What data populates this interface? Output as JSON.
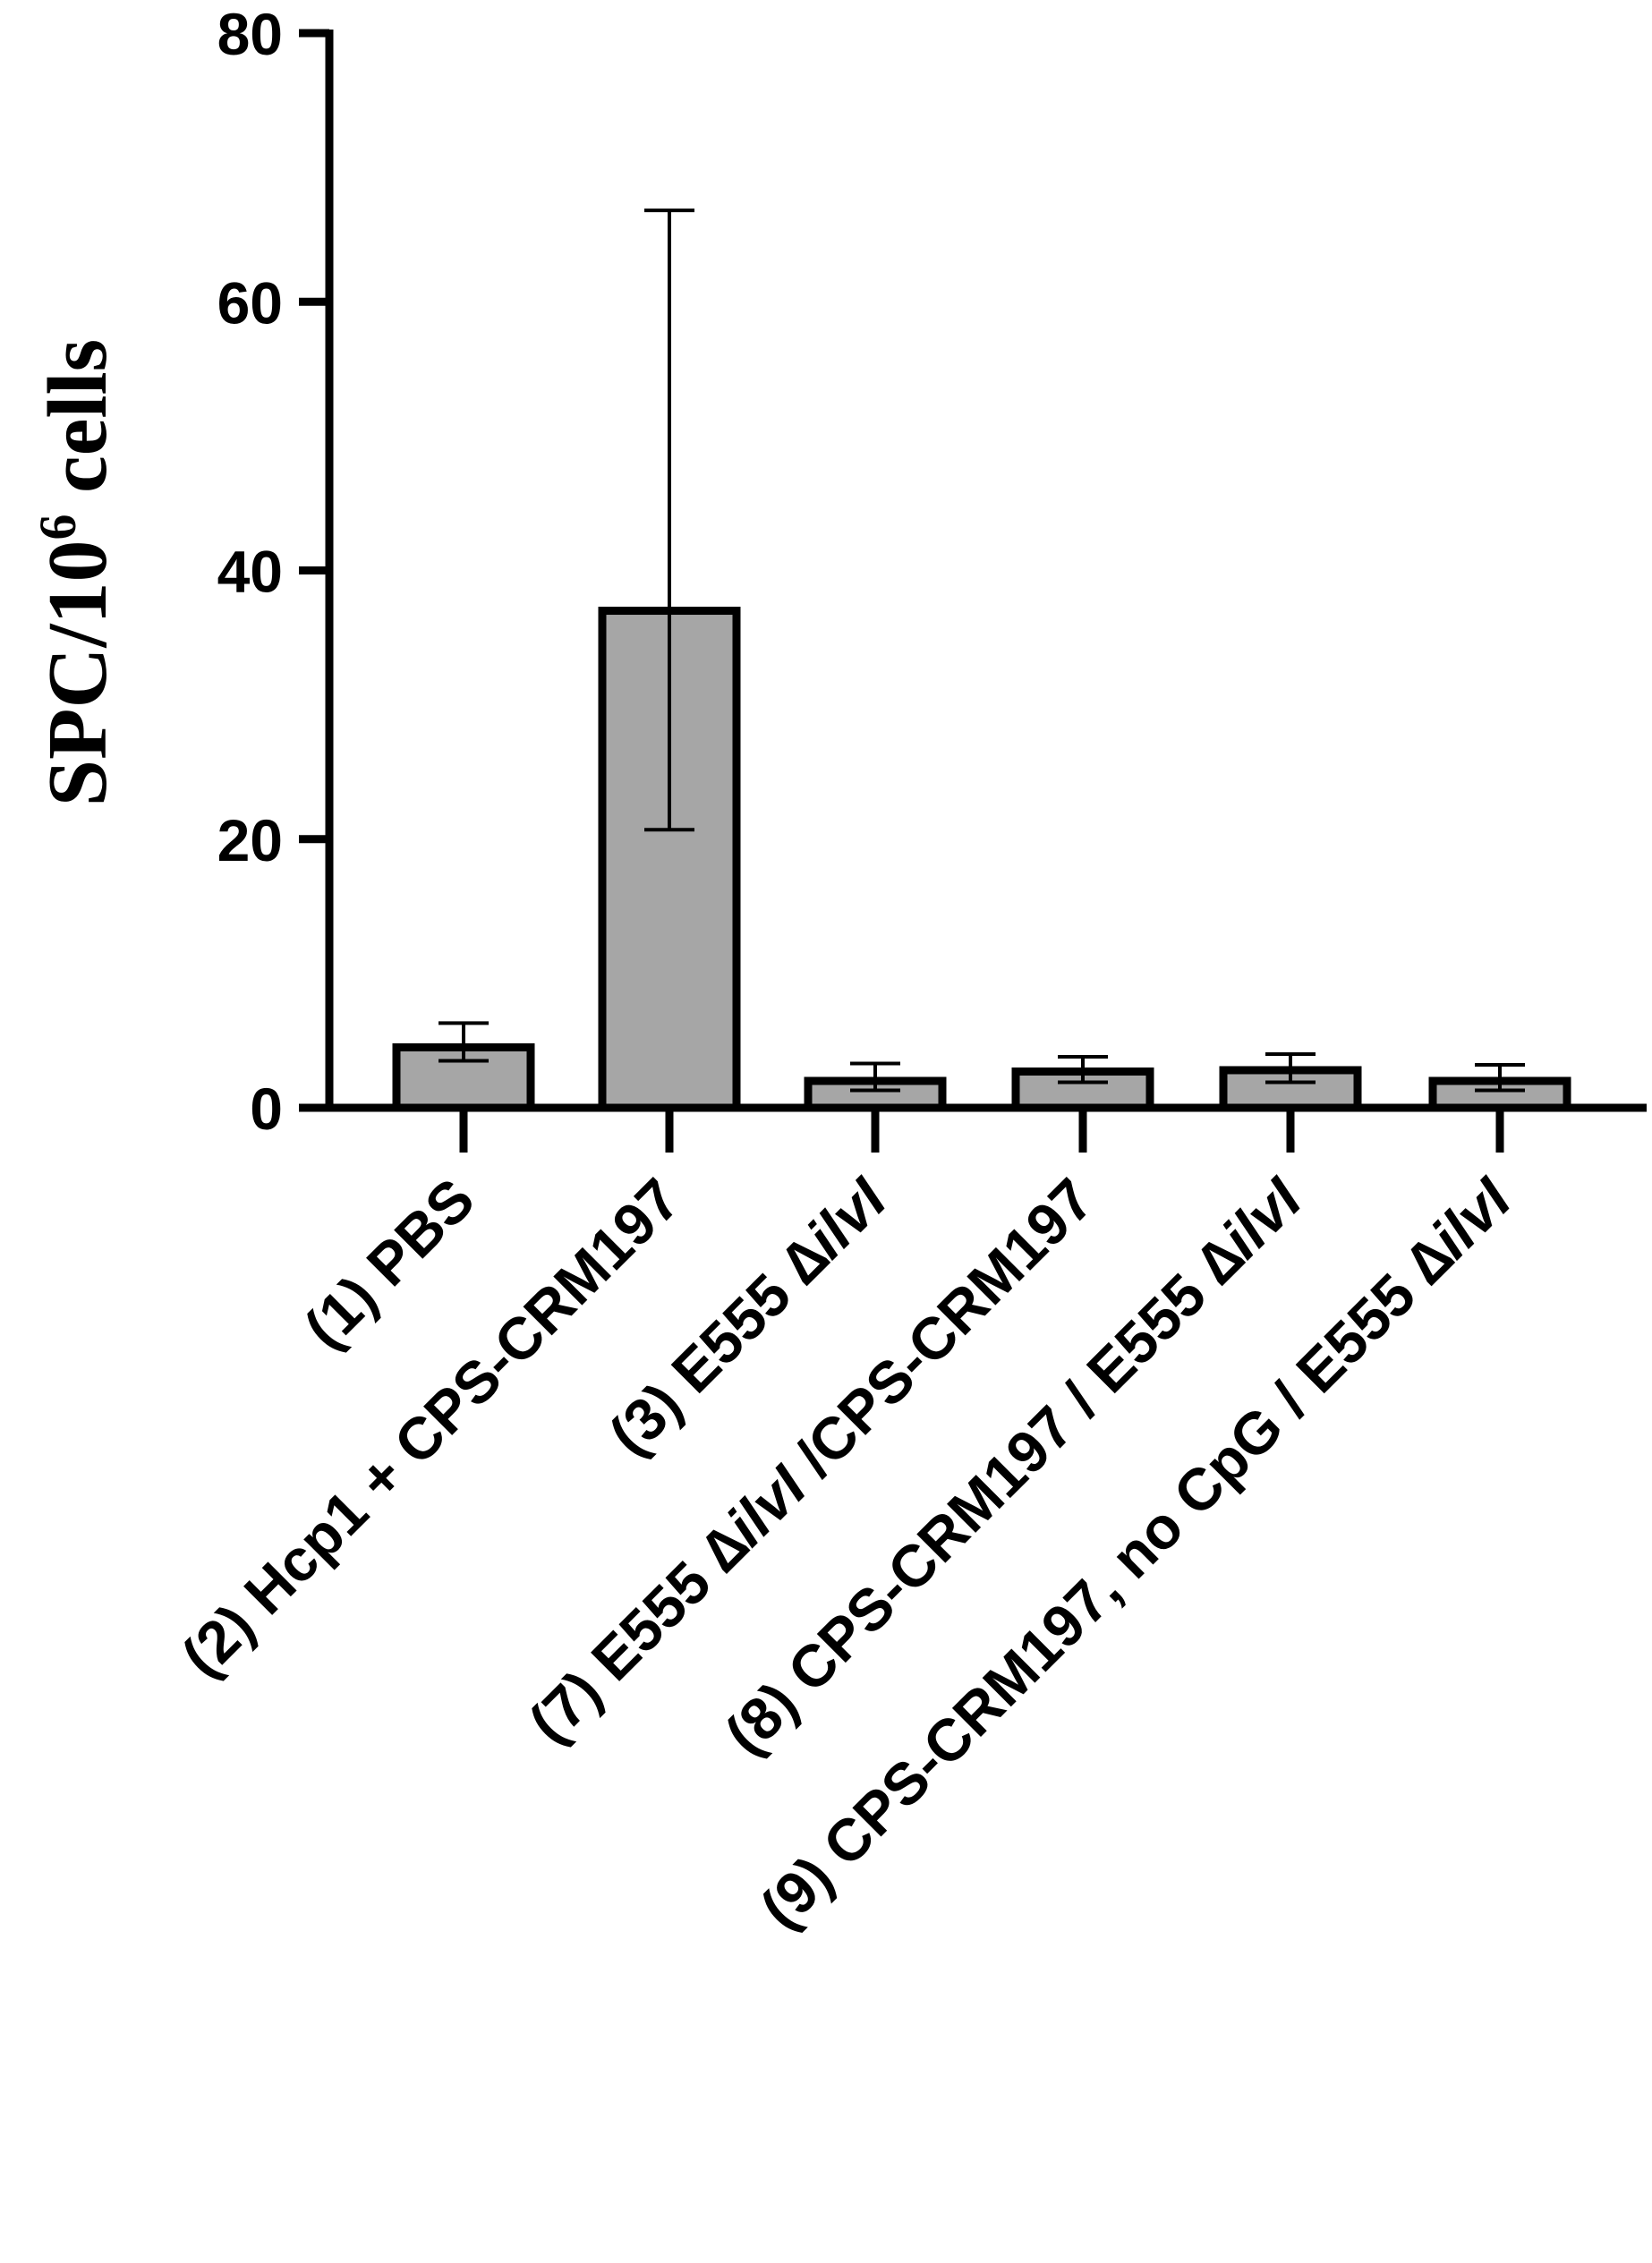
{
  "chart_data": {
    "type": "bar",
    "title": "",
    "xlabel": "",
    "ylabel": {
      "prefix": "SPC/10",
      "superscript": "6",
      "suffix": " cells"
    },
    "ylim": [
      0,
      80
    ],
    "yticks": [
      0,
      20,
      40,
      60,
      80
    ],
    "ytick_labels": [
      "0",
      "20",
      "40",
      "60",
      "80"
    ],
    "grid": false,
    "legend": "none",
    "bar_color": "#a6a6a6",
    "edge_color": "#000000",
    "categories": [
      {
        "parts": [
          {
            "text": "(1) PBS"
          }
        ]
      },
      {
        "parts": [
          {
            "text": "(2) Hcp1 + CPS-CRM197"
          }
        ]
      },
      {
        "parts": [
          {
            "text": "(3) E555 ∆"
          },
          {
            "text": "ilvI",
            "italic": true
          }
        ]
      },
      {
        "parts": [
          {
            "text": "(7) E555 ∆"
          },
          {
            "text": "ilvI",
            "italic": true
          },
          {
            "text": " /CPS-CRM197"
          }
        ]
      },
      {
        "parts": [
          {
            "text": "(8) CPS-CRM197 / E555 ∆"
          },
          {
            "text": "ilvI",
            "italic": true
          }
        ]
      },
      {
        "parts": [
          {
            "text": "(9) CPS-CRM197, no CpG / E555 ∆"
          },
          {
            "text": "ilvI",
            "italic": true
          }
        ]
      }
    ],
    "values": [
      4.5,
      37,
      2,
      2.7,
      2.8,
      2
    ],
    "error_upper": [
      6.3,
      66.8,
      3.3,
      3.8,
      4.0,
      3.2
    ],
    "error_lower": [
      3.5,
      20.7,
      1.3,
      1.9,
      1.9,
      1.3
    ]
  }
}
